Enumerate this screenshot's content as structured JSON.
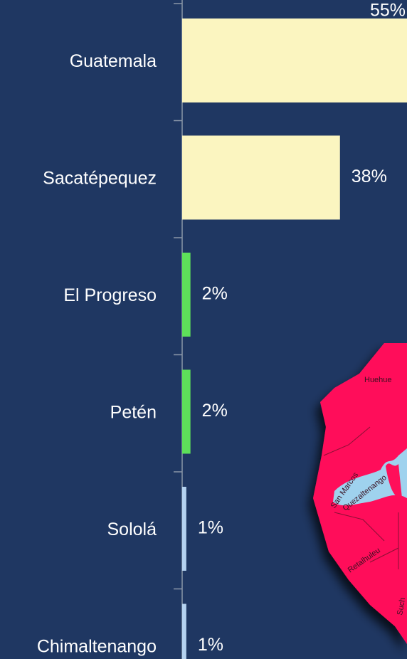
{
  "chart_data": {
    "type": "bar",
    "orientation": "horizontal",
    "categories": [
      "Guatemala",
      "Sacatépequez",
      "El Progreso",
      "Petén",
      "Sololá",
      "Chimaltenango"
    ],
    "values": [
      55,
      38,
      2,
      2,
      1,
      1
    ],
    "value_labels": [
      "55%",
      "38%",
      "2%",
      "2%",
      "1%",
      "1%"
    ],
    "colors": [
      "#fbf5c0",
      "#fbf5c0",
      "#5ee05a",
      "#5ee05a",
      "#b4d2f0",
      "#b4d2f0"
    ],
    "xlim": [
      0,
      55
    ]
  },
  "map": {
    "labels": [
      "Huehue",
      "San Marcos",
      "Quezaltenango",
      "Retalhuleu",
      "Such"
    ]
  }
}
